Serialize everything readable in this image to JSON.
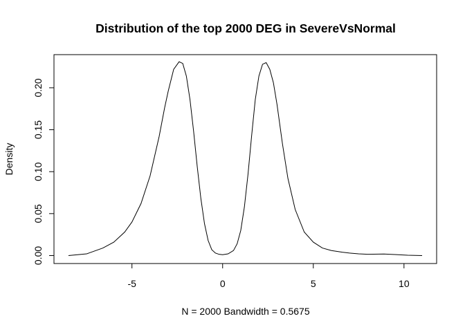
{
  "chart_data": {
    "type": "line",
    "title": "Distribution of the top 2000 DEG in SevereVsNormal",
    "xlabel": "N = 2000   Bandwidth = 0.5675",
    "ylabel": "Density",
    "xlim": [
      -9.3,
      11.8
    ],
    "ylim": [
      -0.0095,
      0.2395
    ],
    "x_ticks": [
      -5,
      0,
      5,
      10
    ],
    "x_tick_labels": [
      "-5",
      "0",
      "5",
      "10"
    ],
    "y_ticks": [
      0.0,
      0.05,
      0.1,
      0.15,
      0.2
    ],
    "y_tick_labels": [
      "0.00",
      "0.05",
      "0.10",
      "0.15",
      "0.20"
    ],
    "grid": false,
    "legend": "none",
    "color": "#000000",
    "series": [
      {
        "name": "density",
        "points": [
          [
            -8.5,
            0.0
          ],
          [
            -7.5,
            0.002
          ],
          [
            -6.6,
            0.009
          ],
          [
            -6.0,
            0.016
          ],
          [
            -5.4,
            0.028
          ],
          [
            -5.0,
            0.04
          ],
          [
            -4.5,
            0.062
          ],
          [
            -4.0,
            0.095
          ],
          [
            -3.5,
            0.142
          ],
          [
            -3.2,
            0.176
          ],
          [
            -3.0,
            0.196
          ],
          [
            -2.7,
            0.222
          ],
          [
            -2.4,
            0.231
          ],
          [
            -2.2,
            0.229
          ],
          [
            -2.0,
            0.214
          ],
          [
            -1.8,
            0.186
          ],
          [
            -1.6,
            0.148
          ],
          [
            -1.4,
            0.106
          ],
          [
            -1.2,
            0.068
          ],
          [
            -1.0,
            0.038
          ],
          [
            -0.8,
            0.018
          ],
          [
            -0.6,
            0.007
          ],
          [
            -0.4,
            0.003
          ],
          [
            -0.2,
            0.0015
          ],
          [
            0.0,
            0.001
          ],
          [
            0.3,
            0.002
          ],
          [
            0.6,
            0.006
          ],
          [
            0.8,
            0.014
          ],
          [
            1.0,
            0.03
          ],
          [
            1.2,
            0.058
          ],
          [
            1.4,
            0.097
          ],
          [
            1.6,
            0.143
          ],
          [
            1.8,
            0.186
          ],
          [
            2.0,
            0.214
          ],
          [
            2.2,
            0.228
          ],
          [
            2.4,
            0.23
          ],
          [
            2.6,
            0.222
          ],
          [
            2.8,
            0.206
          ],
          [
            3.0,
            0.18
          ],
          [
            3.3,
            0.133
          ],
          [
            3.6,
            0.092
          ],
          [
            4.0,
            0.055
          ],
          [
            4.5,
            0.028
          ],
          [
            5.0,
            0.016
          ],
          [
            5.5,
            0.009
          ],
          [
            6.0,
            0.006
          ],
          [
            6.6,
            0.004
          ],
          [
            7.0,
            0.003
          ],
          [
            7.5,
            0.002
          ],
          [
            8.0,
            0.0015
          ],
          [
            8.9,
            0.0018
          ],
          [
            9.5,
            0.0012
          ],
          [
            10.2,
            0.0004
          ],
          [
            11.0,
            0.0
          ]
        ]
      }
    ]
  }
}
